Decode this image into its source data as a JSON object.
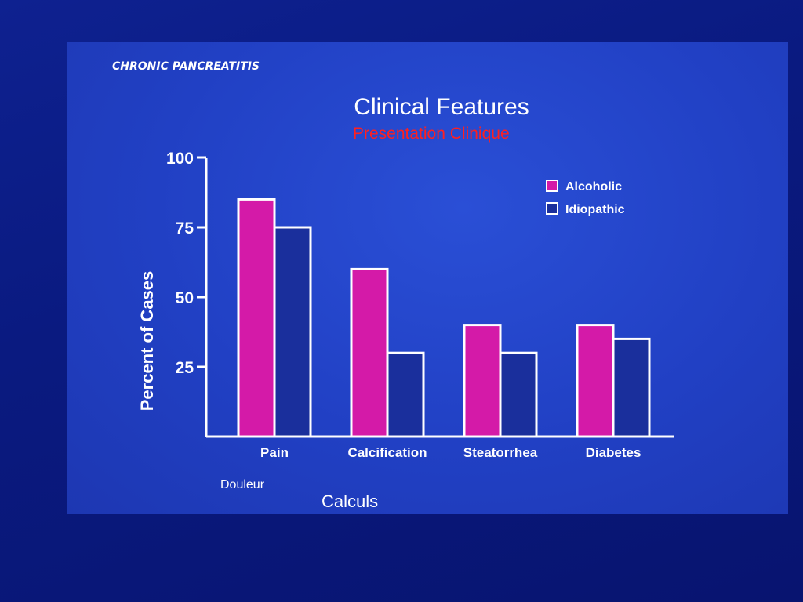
{
  "slide": {
    "subtitle": "Presentation Clinique",
    "notes": [
      "Douleur",
      "Calculs"
    ]
  },
  "chart_data": {
    "type": "bar",
    "supertitle": "CHRONIC PANCREATITIS",
    "title": "Clinical Features",
    "xlabel": "",
    "ylabel": "Percent of Cases",
    "ylim": [
      0,
      100
    ],
    "yticks": [
      25,
      50,
      75,
      100
    ],
    "categories": [
      "Pain",
      "Calcification",
      "Steatorrhea",
      "Diabetes"
    ],
    "series": [
      {
        "name": "Alcoholic",
        "values": [
          85,
          60,
          40,
          40
        ],
        "color": "#d41aa8"
      },
      {
        "name": "Idiopathic",
        "values": [
          75,
          30,
          30,
          35
        ],
        "color": "#1a2f9c"
      }
    ],
    "legend_position": "top-right",
    "grid": false,
    "colors": {
      "axis": "#ffffff",
      "text": "#ffffff",
      "bar_outline": "#ffffff"
    }
  }
}
